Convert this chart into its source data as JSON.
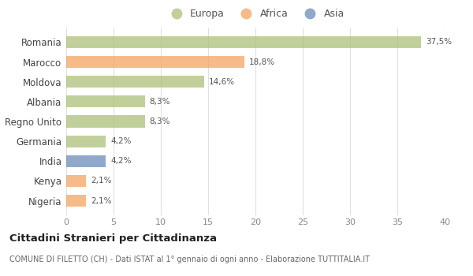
{
  "categories": [
    "Romania",
    "Marocco",
    "Moldova",
    "Albania",
    "Regno Unito",
    "Germania",
    "India",
    "Kenya",
    "Nigeria"
  ],
  "values": [
    37.5,
    18.8,
    14.6,
    8.3,
    8.3,
    4.2,
    4.2,
    2.1,
    2.1
  ],
  "labels": [
    "37,5%",
    "18,8%",
    "14,6%",
    "8,3%",
    "8,3%",
    "4,2%",
    "4,2%",
    "2,1%",
    "2,1%"
  ],
  "bar_colors": [
    "#adc178",
    "#f4a460",
    "#adc178",
    "#adc178",
    "#adc178",
    "#adc178",
    "#6b8cba",
    "#f4a460",
    "#f4a460"
  ],
  "legend_labels": [
    "Europa",
    "Africa",
    "Asia"
  ],
  "legend_colors": [
    "#adc178",
    "#f4a460",
    "#6b8cba"
  ],
  "title": "Cittadini Stranieri per Cittadinanza",
  "subtitle": "COMUNE DI FILETTO (CH) - Dati ISTAT al 1° gennaio di ogni anno - Elaborazione TUTTITALIA.IT",
  "xlim": [
    0,
    40
  ],
  "xticks": [
    0,
    5,
    10,
    15,
    20,
    25,
    30,
    35,
    40
  ],
  "bg_color": "#ffffff",
  "grid_color": "#e0e0e0",
  "bar_alpha": 0.75,
  "bar_height": 0.6
}
